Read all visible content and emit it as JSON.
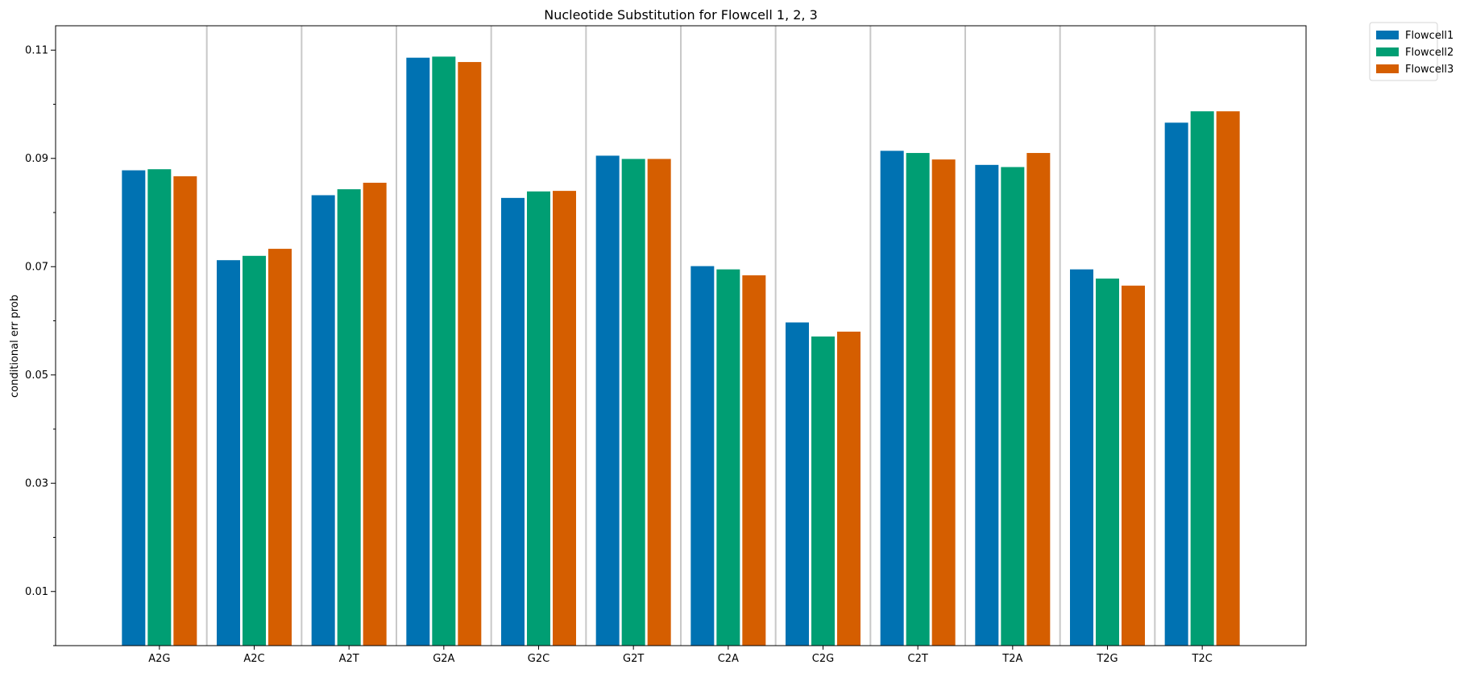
{
  "chart_data": {
    "type": "bar",
    "title": "Nucleotide Substitution for Flowcell 1, 2, 3",
    "xlabel": "",
    "ylabel": "conditional err prob",
    "categories": [
      "A2G",
      "A2C",
      "A2T",
      "G2A",
      "G2C",
      "G2T",
      "C2A",
      "C2G",
      "C2T",
      "T2A",
      "T2G",
      "T2C"
    ],
    "series": [
      {
        "name": "Flowcell1",
        "color": "#0072b2",
        "values": [
          0.0878,
          0.0712,
          0.0832,
          0.1086,
          0.0827,
          0.0905,
          0.0701,
          0.0597,
          0.0914,
          0.0888,
          0.0695,
          0.0966
        ]
      },
      {
        "name": "Flowcell2",
        "color": "#009e73",
        "values": [
          0.088,
          0.072,
          0.0843,
          0.1088,
          0.0839,
          0.0899,
          0.0695,
          0.0571,
          0.091,
          0.0884,
          0.0678,
          0.0987
        ]
      },
      {
        "name": "Flowcell3",
        "color": "#d55e00",
        "values": [
          0.0867,
          0.0733,
          0.0855,
          0.1078,
          0.084,
          0.0899,
          0.0684,
          0.058,
          0.0898,
          0.091,
          0.0665,
          0.0987
        ]
      }
    ],
    "ylim": [
      0,
      0.1145
    ],
    "yticks_major": [
      "0.01",
      "0.03",
      "0.05",
      "0.07",
      "0.09",
      "0.11"
    ],
    "yticks_minor": [
      0.0,
      0.02,
      0.04,
      0.06,
      0.08,
      0.1
    ],
    "grid": "vertical separators between categories",
    "legend": "outside-top-right"
  }
}
